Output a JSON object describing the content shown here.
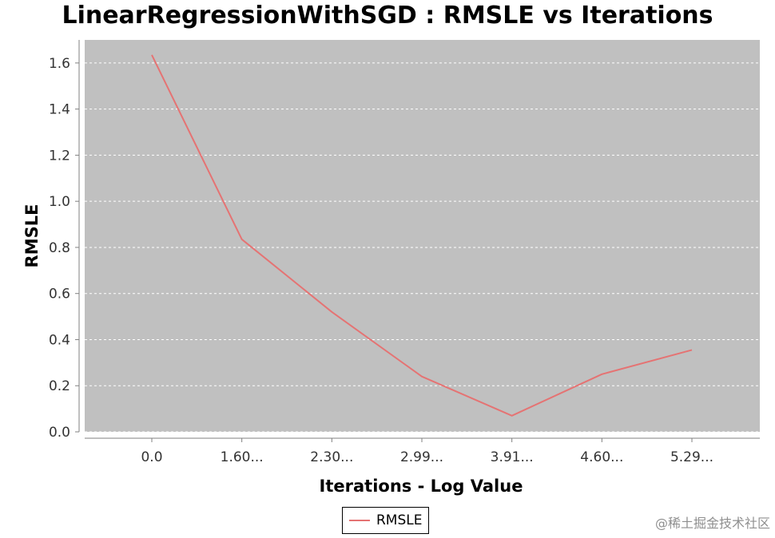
{
  "chart_data": {
    "type": "line",
    "title": "LinearRegressionWithSGD : RMSLE vs Iterations",
    "xlabel": "Iterations - Log Value",
    "ylabel": "RMSLE",
    "categories": [
      "0.0",
      "1.60...",
      "2.30...",
      "2.99...",
      "3.91...",
      "4.60...",
      "5.29..."
    ],
    "series": [
      {
        "name": "RMSLE",
        "color": "#e57373",
        "values": [
          1.635,
          0.835,
          0.52,
          0.24,
          0.07,
          0.25,
          0.355
        ]
      }
    ],
    "ylim": [
      0,
      1.7
    ],
    "yticks": [
      0.0,
      0.2,
      0.4,
      0.6,
      0.8,
      1.0,
      1.2,
      1.4,
      1.6
    ],
    "grid": true,
    "legend": "bottom-center",
    "plot_background": "#c0c0c0",
    "grid_color": "#ffffff"
  },
  "watermark": "@稀土掘金技术社区"
}
